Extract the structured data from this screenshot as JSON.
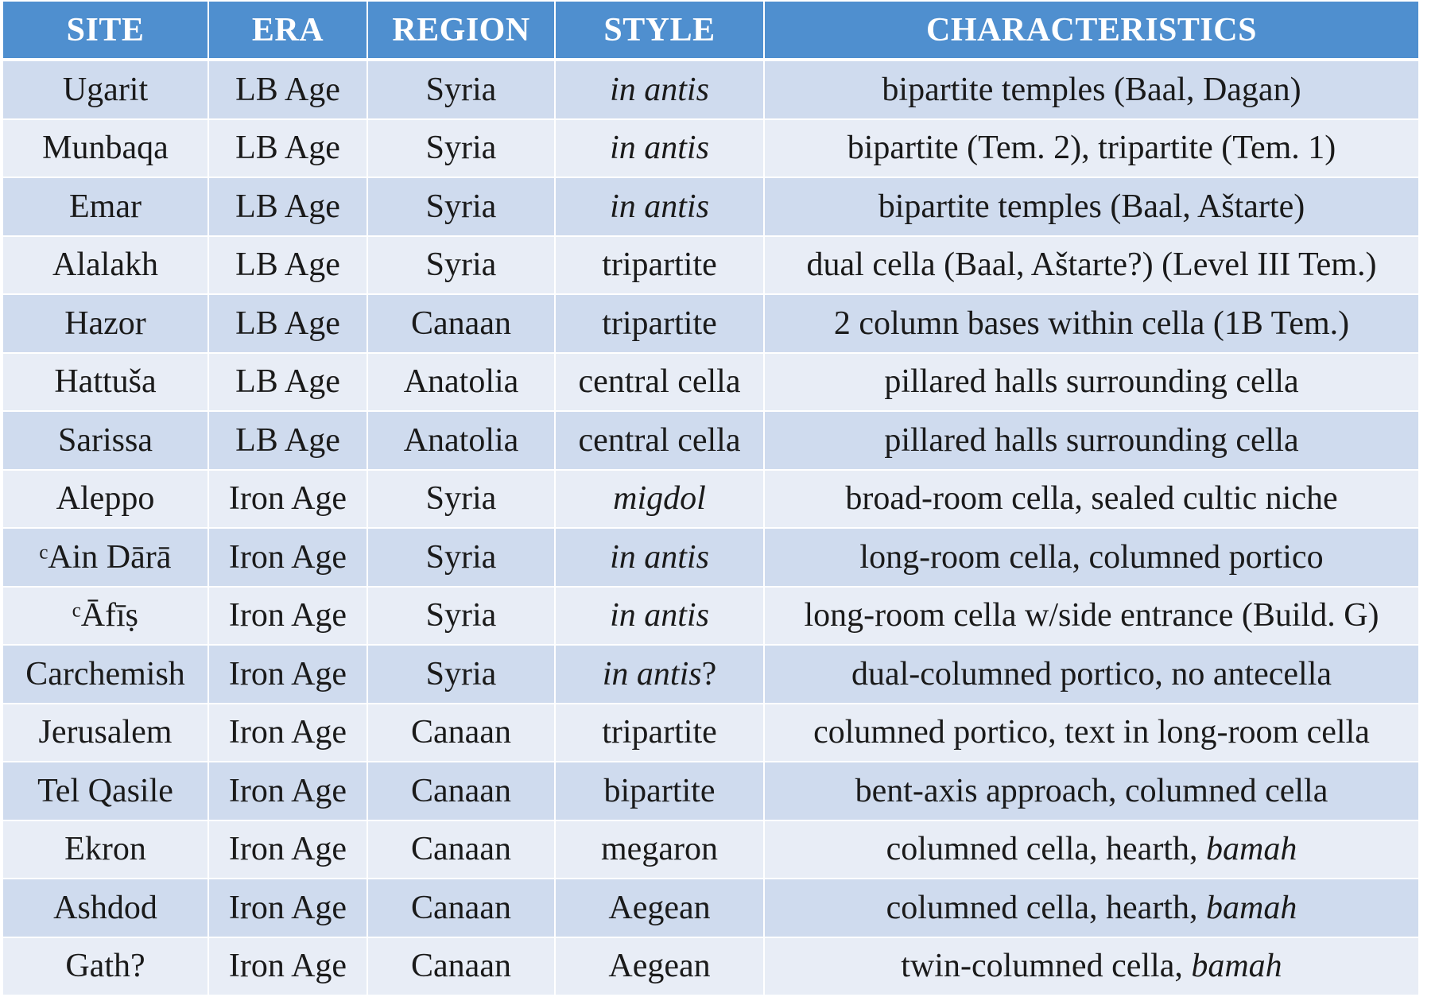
{
  "table": {
    "headers": [
      "SITE",
      "ERA",
      "REGION",
      "STYLE",
      "CHARACTERISTICS"
    ],
    "rows": [
      {
        "site": "Ugarit",
        "era": "LB Age",
        "region": "Syria",
        "style": "in antis",
        "style_italic": "in antis",
        "style_suffix": "",
        "char": "bipartite temples (Baal, Dagan)",
        "char_italic": ""
      },
      {
        "site": "Munbaqa",
        "era": "LB Age",
        "region": "Syria",
        "style": "in antis",
        "style_italic": "in antis",
        "style_suffix": "",
        "char": "bipartite (Tem. 2), tripartite (Tem. 1)",
        "char_italic": ""
      },
      {
        "site": "Emar",
        "era": "LB Age",
        "region": "Syria",
        "style": "in antis",
        "style_italic": "in antis",
        "style_suffix": "",
        "char": "bipartite temples (Baal, Aštarte)",
        "char_italic": ""
      },
      {
        "site": "Alalakh",
        "era": "LB Age",
        "region": "Syria",
        "style": "tripartite",
        "style_italic": "",
        "style_suffix": "tripartite",
        "char": "dual cella (Baal, Aštarte?) (Level III Tem.)",
        "char_italic": ""
      },
      {
        "site": "Hazor",
        "era": "LB Age",
        "region": "Canaan",
        "style": "tripartite",
        "style_italic": "",
        "style_suffix": "tripartite",
        "char": "2 column bases within cella (1B Tem.)",
        "char_italic": ""
      },
      {
        "site": "Hattuša",
        "era": "LB Age",
        "region": "Anatolia",
        "style": "central cella",
        "style_italic": "",
        "style_suffix": "central cella",
        "char": "pillared halls surrounding cella",
        "char_italic": ""
      },
      {
        "site": "Sarissa",
        "era": "LB Age",
        "region": "Anatolia",
        "style": "central cella",
        "style_italic": "",
        "style_suffix": "central cella",
        "char": "pillared halls surrounding cella",
        "char_italic": ""
      },
      {
        "site": "Aleppo",
        "era": "Iron Age",
        "region": "Syria",
        "style": "migdol",
        "style_italic": "migdol",
        "style_suffix": "",
        "char": "broad-room cella, sealed cultic niche",
        "char_italic": ""
      },
      {
        "site": "ᶜAin Dārā",
        "era": "Iron Age",
        "region": "Syria",
        "style": "in antis",
        "style_italic": "in antis",
        "style_suffix": "",
        "char": "long-room cella, columned portico",
        "char_italic": ""
      },
      {
        "site": "ᶜĀfīṣ",
        "era": "Iron Age",
        "region": "Syria",
        "style": "in antis",
        "style_italic": "in antis",
        "style_suffix": "",
        "char": "long-room cella w/side entrance (Build. G)",
        "char_italic": ""
      },
      {
        "site": "Carchemish",
        "era": "Iron Age",
        "region": "Syria",
        "style": "in antis?",
        "style_italic": "in antis",
        "style_suffix": "?",
        "char": "dual-columned portico, no antecella",
        "char_italic": ""
      },
      {
        "site": "Jerusalem",
        "era": "Iron Age",
        "region": "Canaan",
        "style": "tripartite",
        "style_italic": "",
        "style_suffix": "tripartite",
        "char": "columned portico, text in long-room cella",
        "char_italic": ""
      },
      {
        "site": "Tel Qasile",
        "era": "Iron Age",
        "region": "Canaan",
        "style": "bipartite",
        "style_italic": "",
        "style_suffix": "bipartite",
        "char": "bent-axis approach, columned cella",
        "char_italic": ""
      },
      {
        "site": "Ekron",
        "era": "Iron Age",
        "region": "Canaan",
        "style": "megaron",
        "style_italic": "",
        "style_suffix": "megaron",
        "char": "columned cella, hearth, ",
        "char_italic": "bamah"
      },
      {
        "site": "Ashdod",
        "era": "Iron Age",
        "region": "Canaan",
        "style": "Aegean",
        "style_italic": "",
        "style_suffix": "Aegean",
        "char": "columned cella, hearth, ",
        "char_italic": "bamah"
      },
      {
        "site": "Gath?",
        "era": "Iron Age",
        "region": "Canaan",
        "style": "Aegean",
        "style_italic": "",
        "style_suffix": "Aegean",
        "char": "twin-columned cella, ",
        "char_italic": "bamah"
      }
    ]
  },
  "colors": {
    "header_bg": "#4f8fcf",
    "row_odd": "#cfdbee",
    "row_even": "#e8edf6"
  }
}
